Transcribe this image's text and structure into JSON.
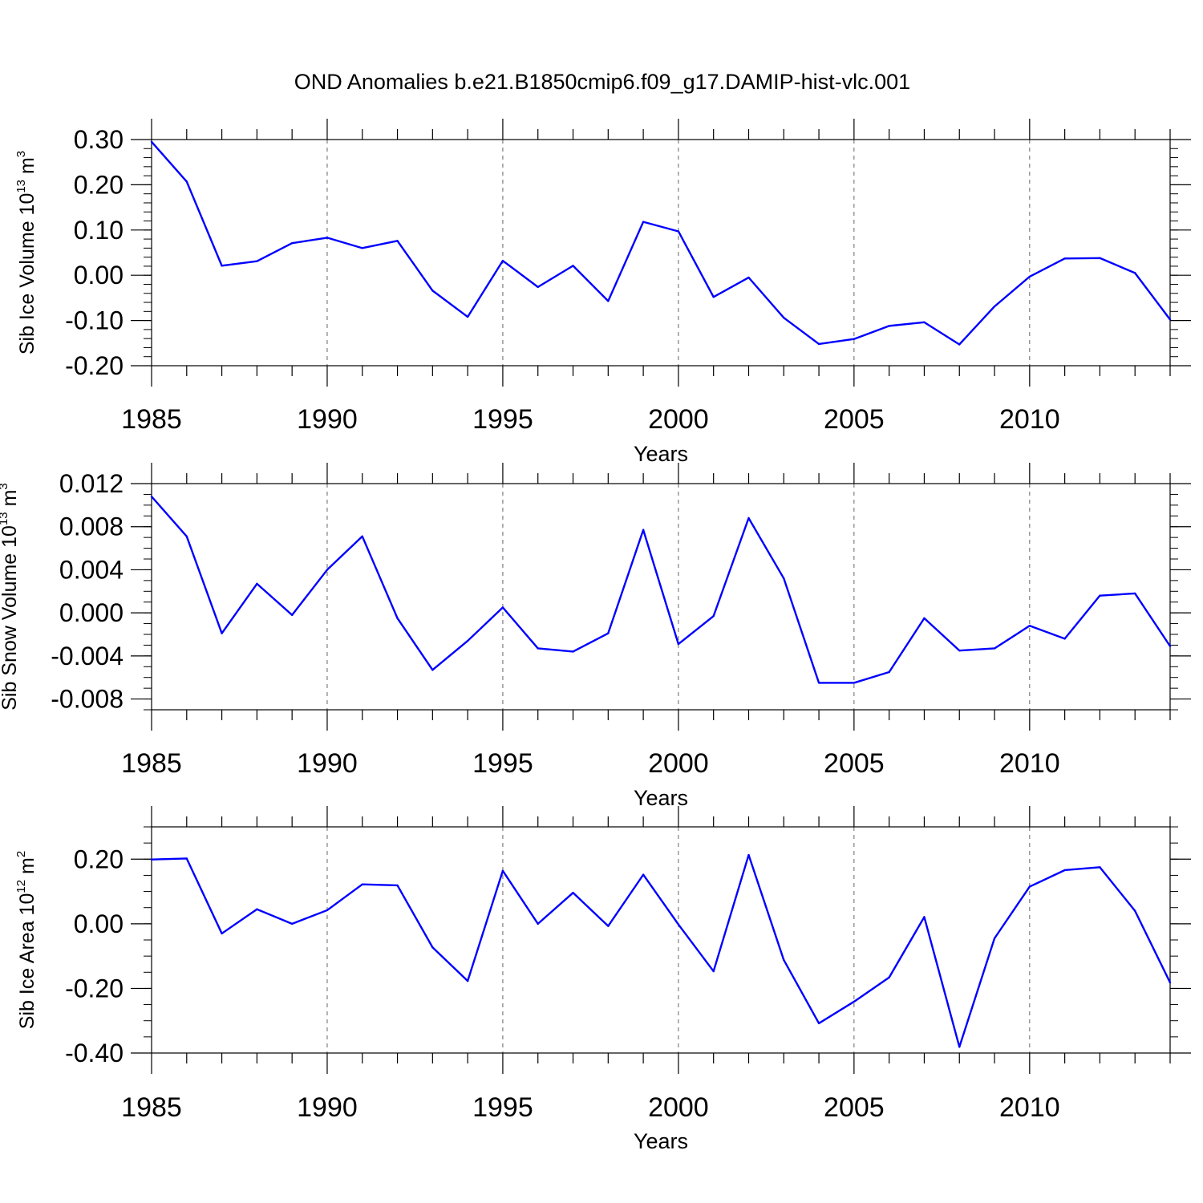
{
  "chart_data": {
    "type": "line",
    "title": "OND Anomalies b.e21.B1850cmip6.f09_g17.DAMIP-hist-vlc.001",
    "series_color": "#0000ff",
    "grid_color": "#666666",
    "panels": [
      {
        "name": "sib-ice-volume",
        "ylabel_main": "Sib Ice Volume 10",
        "ylabel_exp": "13",
        "ylabel_unit": " m",
        "ylabel_unit_exp": "3",
        "xlabel": "Years",
        "xlim": [
          1985,
          2014
        ],
        "ylim": [
          -0.2,
          0.3
        ],
        "yticks": [
          -0.2,
          -0.1,
          0.0,
          0.1,
          0.2,
          0.3
        ],
        "ytick_labels": [
          "-0.20",
          "-0.10",
          "0.00",
          "0.10",
          "0.20",
          "0.30"
        ],
        "ytick_minor_step": 0.02,
        "xticks": [
          1985,
          1990,
          1995,
          2000,
          2005,
          2010
        ],
        "xtick_labels": [
          "1985",
          "1990",
          "1995",
          "2000",
          "2005",
          "2010"
        ],
        "x": [
          1985,
          1986,
          1987,
          1988,
          1989,
          1990,
          1991,
          1992,
          1993,
          1994,
          1995,
          1996,
          1997,
          1998,
          1999,
          2000,
          2001,
          2002,
          2003,
          2004,
          2005,
          2006,
          2007,
          2008,
          2009,
          2010,
          2011,
          2012,
          2013,
          2014
        ],
        "y": [
          0.295,
          0.207,
          0.021,
          0.031,
          0.071,
          0.083,
          0.06,
          0.076,
          -0.034,
          -0.092,
          0.032,
          -0.026,
          0.021,
          -0.057,
          0.118,
          0.097,
          -0.048,
          -0.005,
          -0.094,
          -0.152,
          -0.141,
          -0.112,
          -0.104,
          -0.153,
          -0.069,
          -0.003,
          0.037,
          0.038,
          0.005,
          -0.098
        ]
      },
      {
        "name": "sib-snow-volume",
        "ylabel_main": "Sib Snow Volume 10",
        "ylabel_exp": "13",
        "ylabel_unit": " m",
        "ylabel_unit_exp": "3",
        "xlabel": "Years",
        "xlim": [
          1985,
          2014
        ],
        "ylim": [
          -0.009,
          0.012
        ],
        "yticks": [
          -0.008,
          -0.004,
          0.0,
          0.004,
          0.008,
          0.012
        ],
        "ytick_labels": [
          "-0.008",
          "-0.004",
          "0.000",
          "0.004",
          "0.008",
          "0.012"
        ],
        "ytick_minor_step": 0.001,
        "xticks": [
          1985,
          1990,
          1995,
          2000,
          2005,
          2010
        ],
        "xtick_labels": [
          "1985",
          "1990",
          "1995",
          "2000",
          "2005",
          "2010"
        ],
        "x": [
          1985,
          1986,
          1987,
          1988,
          1989,
          1990,
          1991,
          1992,
          1993,
          1994,
          1995,
          1996,
          1997,
          1998,
          1999,
          2000,
          2001,
          2002,
          2003,
          2004,
          2005,
          2006,
          2007,
          2008,
          2009,
          2010,
          2011,
          2012,
          2013,
          2014
        ],
        "y": [
          0.0108,
          0.0071,
          -0.0019,
          0.0027,
          -0.0002,
          0.004,
          0.0071,
          -0.0005,
          -0.0053,
          -0.0026,
          0.0005,
          -0.0033,
          -0.0036,
          -0.0019,
          0.0077,
          -0.0029,
          -0.0003,
          0.0088,
          0.0032,
          -0.0065,
          -0.0065,
          -0.0055,
          -0.0005,
          -0.0035,
          -0.0033,
          -0.0012,
          -0.0024,
          0.0016,
          0.0018,
          -0.0031
        ]
      },
      {
        "name": "sib-ice-area",
        "ylabel_main": "Sib Ice Area 10",
        "ylabel_exp": "12",
        "ylabel_unit": " m",
        "ylabel_unit_exp": "2",
        "xlabel": "Years",
        "xlim": [
          1985,
          2014
        ],
        "ylim": [
          -0.4,
          0.3
        ],
        "yticks": [
          -0.4,
          -0.2,
          0.0,
          0.2
        ],
        "ytick_labels": [
          "-0.40",
          "-0.20",
          "0.00",
          "0.20"
        ],
        "ytick_minor_step": 0.05,
        "xticks": [
          1985,
          1990,
          1995,
          2000,
          2005,
          2010
        ],
        "xtick_labels": [
          "1985",
          "1990",
          "1995",
          "2000",
          "2005",
          "2010"
        ],
        "x": [
          1985,
          1986,
          1987,
          1988,
          1989,
          1990,
          1991,
          1992,
          1993,
          1994,
          1995,
          1996,
          1997,
          1998,
          1999,
          2000,
          2001,
          2002,
          2003,
          2004,
          2005,
          2006,
          2007,
          2008,
          2009,
          2010,
          2011,
          2012,
          2013,
          2014
        ],
        "y": [
          0.199,
          0.202,
          -0.03,
          0.045,
          0.0,
          0.042,
          0.122,
          0.119,
          -0.073,
          -0.177,
          0.164,
          0.0,
          0.096,
          -0.007,
          0.152,
          -0.002,
          -0.147,
          0.213,
          -0.112,
          -0.308,
          -0.241,
          -0.166,
          0.021,
          -0.381,
          -0.045,
          0.115,
          0.166,
          0.175,
          0.04,
          -0.182
        ]
      }
    ]
  }
}
